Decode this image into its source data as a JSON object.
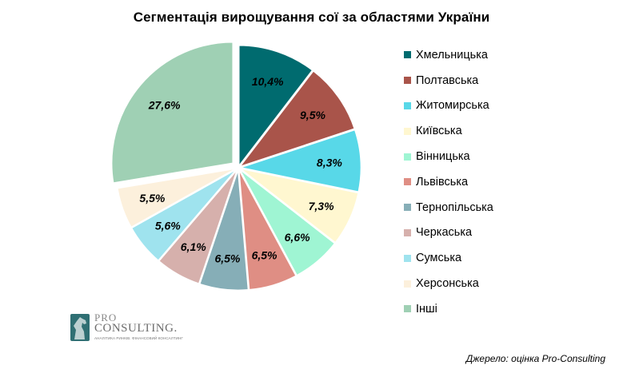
{
  "chart_data": {
    "type": "pie",
    "title": "Сегментація вирощування сої за областями України",
    "slices": [
      {
        "label": "Хмельницька",
        "value": 10.4,
        "value_label": "10,4%",
        "color": "#006b6f"
      },
      {
        "label": "Полтавська",
        "value": 9.5,
        "value_label": "9,5%",
        "color": "#a9544a"
      },
      {
        "label": "Житомирська",
        "value": 8.3,
        "value_label": "8,3%",
        "color": "#58d8e8"
      },
      {
        "label": "Київська",
        "value": 7.3,
        "value_label": "7,3%",
        "color": "#fff7d0"
      },
      {
        "label": "Вінницька",
        "value": 6.6,
        "value_label": "6,6%",
        "color": "#9ff5d3"
      },
      {
        "label": "Львівська",
        "value": 6.5,
        "value_label": "6,5%",
        "color": "#df8e84"
      },
      {
        "label": "Тернопільська",
        "value": 6.5,
        "value_label": "6,5%",
        "color": "#86aeb7"
      },
      {
        "label": "Черкаська",
        "value": 6.1,
        "value_label": "6,1%",
        "color": "#d6b0ac"
      },
      {
        "label": "Сумська",
        "value": 5.6,
        "value_label": "5,6%",
        "color": "#9fe3ee"
      },
      {
        "label": "Херсонська",
        "value": 5.5,
        "value_label": "5,5%",
        "color": "#fcf0dc"
      },
      {
        "label": "Інші",
        "value": 27.6,
        "value_label": "27,6%",
        "color": "#9fd0b4"
      }
    ],
    "legend_position": "right"
  },
  "logo": {
    "pro": "PRO",
    "name": "CONSULTING.",
    "tagline": "АНАЛІТИКА РИНКІВ. ФІНАНСОВИЙ КОНСАЛТИНГ"
  },
  "source_note": "Джерело: оцінка Pro-Consulting"
}
